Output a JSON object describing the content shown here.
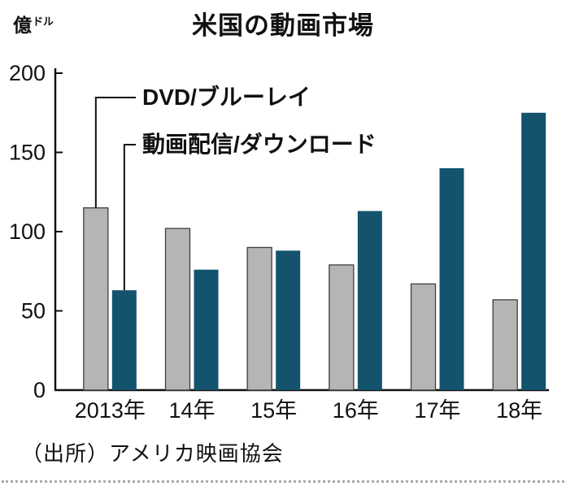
{
  "title": "米国の動画市場",
  "y_axis": {
    "unit_main": "億",
    "unit_sub": "ドル"
  },
  "source": "（出所）アメリカ映画協会",
  "colors": {
    "dvd_bar": "#b5b5b5",
    "dvd_bar_border": "#3f3f3f",
    "streaming_bar": "#14536e",
    "axis": "#111111",
    "text": "#111111"
  },
  "chart_data": {
    "type": "bar",
    "title": "米国の動画市場",
    "categories": [
      "2013年",
      "14年",
      "15年",
      "16年",
      "17年",
      "18年"
    ],
    "series": [
      {
        "name": "DVD/ブルーレイ",
        "values": [
          115,
          102,
          90,
          79,
          67,
          57
        ]
      },
      {
        "name": "動画配信/ダウンロード",
        "values": [
          63,
          76,
          88,
          113,
          140,
          175
        ]
      }
    ],
    "xlabel": "",
    "ylabel": "億ドル",
    "ylim": [
      0,
      210
    ],
    "yticks": [
      0,
      50,
      100,
      150,
      200
    ],
    "grid": false,
    "legend_position": "annotated-inside",
    "source": "（出所）アメリカ映画協会"
  }
}
